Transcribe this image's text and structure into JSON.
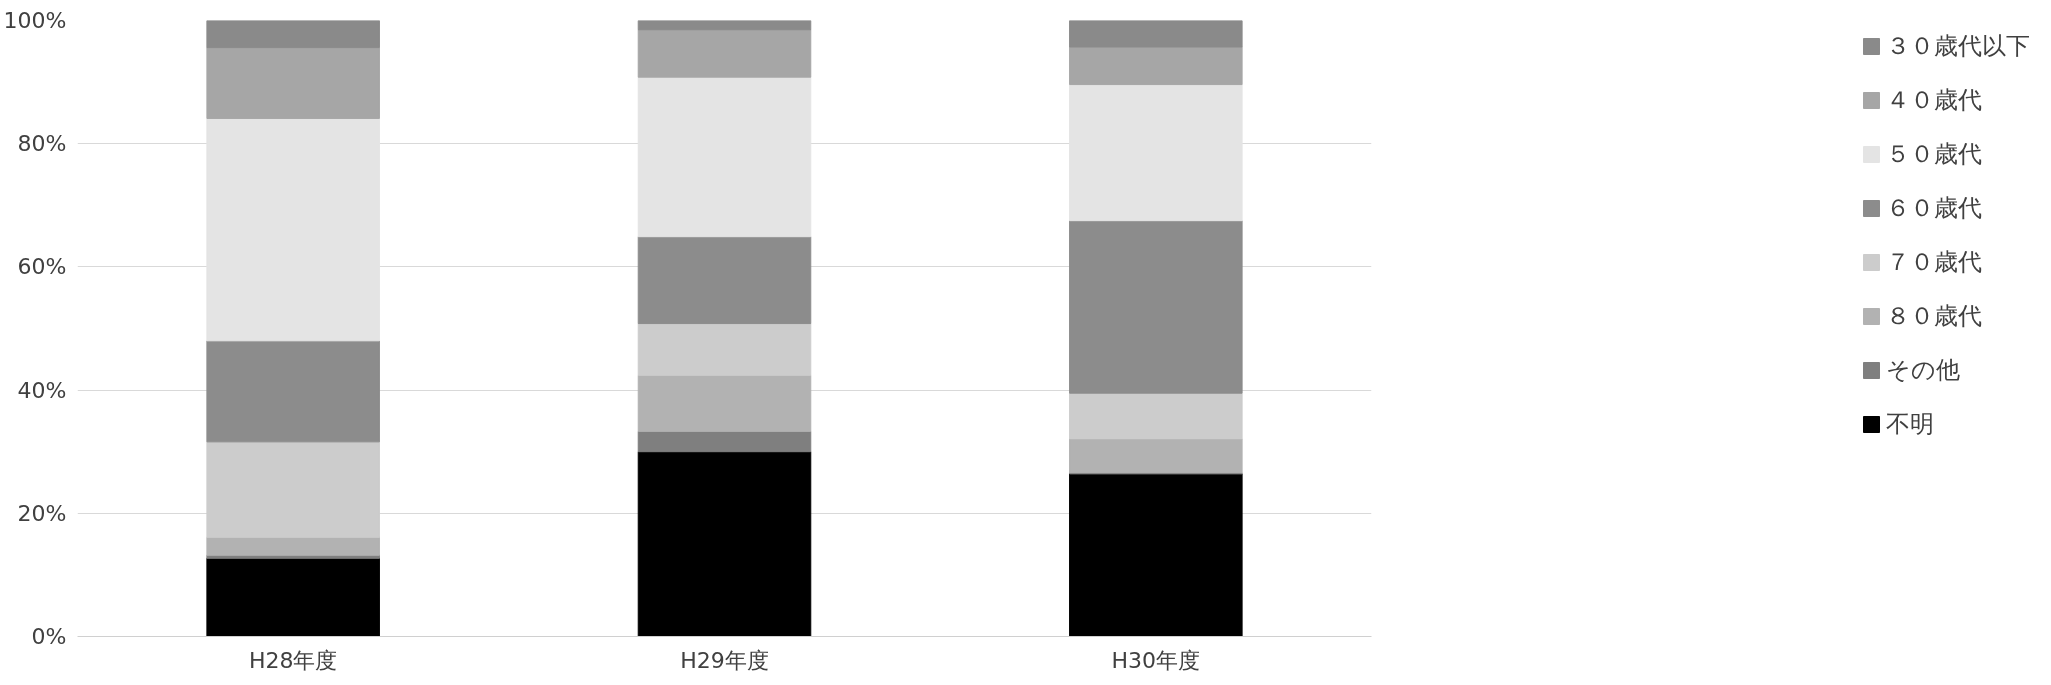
{
  "chart_data": {
    "type": "bar",
    "stacked": true,
    "categories": [
      "H28年度",
      "H29年度",
      "H30年度"
    ],
    "series": [
      {
        "name": "不明",
        "color": "#000000",
        "values": [
          12.7,
          30.0,
          26.4
        ]
      },
      {
        "name": "その他",
        "color": "#7f7f7f",
        "values": [
          0.5,
          3.3,
          0.2
        ]
      },
      {
        "name": "８０歳代",
        "color": "#b2b2b2",
        "values": [
          2.9,
          9.1,
          5.5
        ]
      },
      {
        "name": "７０歳代",
        "color": "#cccccc",
        "values": [
          15.5,
          8.4,
          7.4
        ]
      },
      {
        "name": "６０歳代",
        "color": "#8c8c8c",
        "values": [
          16.4,
          14.1,
          28.0
        ]
      },
      {
        "name": "５０歳代",
        "color": "#e4e4e4",
        "values": [
          36.1,
          25.9,
          22.1
        ]
      },
      {
        "name": "４０歳代",
        "color": "#a6a6a6",
        "values": [
          11.5,
          7.7,
          6.1
        ]
      },
      {
        "name": "３０歳代以下",
        "color": "#8a8a8a",
        "values": [
          4.4,
          1.5,
          4.3
        ]
      }
    ],
    "ylim": [
      0,
      100
    ],
    "yticks": [
      {
        "value": 0,
        "label": "0%"
      },
      {
        "value": 20,
        "label": "20%"
      },
      {
        "value": 40,
        "label": "40%"
      },
      {
        "value": 60,
        "label": "60%"
      },
      {
        "value": 80,
        "label": "80%"
      },
      {
        "value": 100,
        "label": "100%"
      }
    ],
    "grid": "y",
    "legend": "right"
  }
}
